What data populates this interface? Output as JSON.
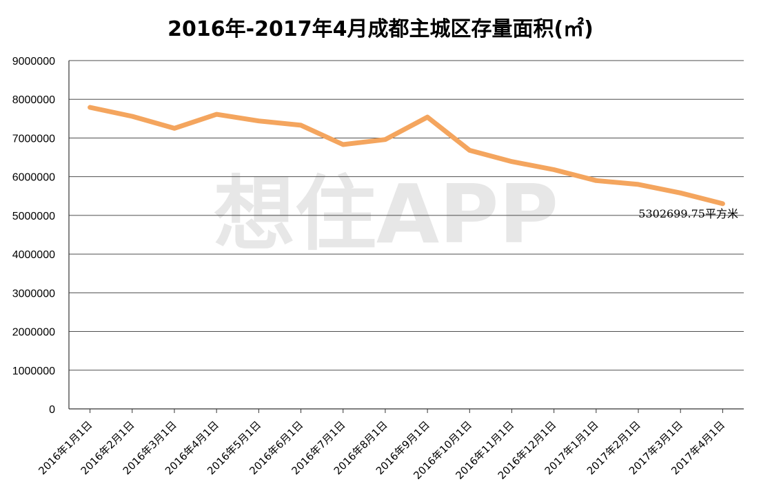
{
  "watermark": "想住APP",
  "chart_data": {
    "type": "line",
    "title": "2016年-2017年4月成都主城区存量面积(㎡)",
    "categories": [
      "2016年1月1日",
      "2016年2月1日",
      "2016年3月1日",
      "2016年4月1日",
      "2016年5月1日",
      "2016年6月1日",
      "2016年7月1日",
      "2016年8月1日",
      "2016年9月1日",
      "2016年10月1日",
      "2016年11月1日",
      "2016年12月1日",
      "2017年1月1日",
      "2017年2月1日",
      "2017年3月1日",
      "2017年4月1日"
    ],
    "series": [
      {
        "values": [
          7790000,
          7560000,
          7250000,
          7610000,
          7440000,
          7330000,
          6830000,
          6960000,
          7540000,
          6680000,
          6390000,
          6180000,
          5900000,
          5800000,
          5580000,
          5302699.75
        ],
        "color": "#f4a55e"
      }
    ],
    "ylim": [
      0,
      9000000
    ],
    "yticks": [
      0,
      1000000,
      2000000,
      3000000,
      4000000,
      5000000,
      6000000,
      7000000,
      8000000,
      9000000
    ],
    "grid": true,
    "legend": "none",
    "annotations": [
      {
        "point_index": 15,
        "text": "5302699.75平方米"
      }
    ]
  }
}
